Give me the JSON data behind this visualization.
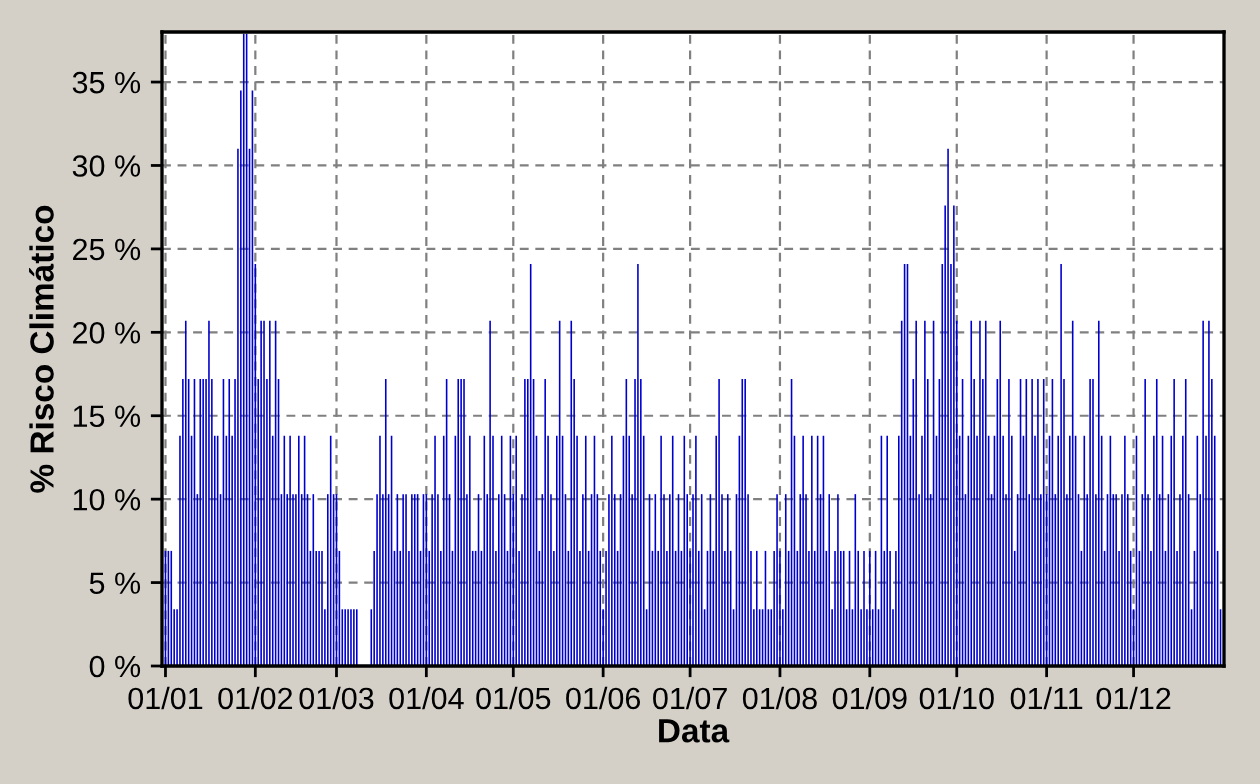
{
  "chart_data": {
    "type": "bar",
    "xlabel": "Data",
    "ylabel": "% Risco Climático",
    "color": "#0000cc",
    "grid": true,
    "ylim": [
      0,
      38
    ],
    "categories": [
      "01/01",
      null,
      null,
      null,
      null,
      null,
      null,
      null,
      null,
      null,
      null,
      null,
      null,
      null,
      null,
      null,
      null,
      null,
      null,
      null,
      null,
      null,
      null,
      null,
      null,
      null,
      null,
      null,
      null,
      null,
      null,
      "01/02",
      null,
      null,
      null,
      null,
      null,
      null,
      null,
      null,
      null,
      null,
      null,
      null,
      null,
      null,
      null,
      null,
      null,
      null,
      null,
      null,
      null,
      null,
      null,
      null,
      null,
      null,
      null,
      "01/03",
      null,
      null,
      null,
      null,
      null,
      null,
      null,
      null,
      null,
      null,
      null,
      null,
      null,
      null,
      null,
      null,
      null,
      null,
      null,
      null,
      null,
      null,
      null,
      null,
      null,
      null,
      null,
      null,
      null,
      null,
      "01/04",
      null,
      null,
      null,
      null,
      null,
      null,
      null,
      null,
      null,
      null,
      null,
      null,
      null,
      null,
      null,
      null,
      null,
      null,
      null,
      null,
      null,
      null,
      null,
      null,
      null,
      null,
      null,
      null,
      null,
      "01/05",
      null,
      null,
      null,
      null,
      null,
      null,
      null,
      null,
      null,
      null,
      null,
      null,
      null,
      null,
      null,
      null,
      null,
      null,
      null,
      null,
      null,
      null,
      null,
      null,
      null,
      null,
      null,
      null,
      null,
      null,
      "01/06",
      null,
      null,
      null,
      null,
      null,
      null,
      null,
      null,
      null,
      null,
      null,
      null,
      null,
      null,
      null,
      null,
      null,
      null,
      null,
      null,
      null,
      null,
      null,
      null,
      null,
      null,
      null,
      null,
      null,
      "01/07",
      null,
      null,
      null,
      null,
      null,
      null,
      null,
      null,
      null,
      null,
      null,
      null,
      null,
      null,
      null,
      null,
      null,
      null,
      null,
      null,
      null,
      null,
      null,
      null,
      null,
      null,
      null,
      null,
      null,
      null,
      "01/08",
      null,
      null,
      null,
      null,
      null,
      null,
      null,
      null,
      null,
      null,
      null,
      null,
      null,
      null,
      null,
      null,
      null,
      null,
      null,
      null,
      null,
      null,
      null,
      null,
      null,
      null,
      null,
      null,
      null,
      null,
      "01/09",
      null,
      null,
      null,
      null,
      null,
      null,
      null,
      null,
      null,
      null,
      null,
      null,
      null,
      null,
      null,
      null,
      null,
      null,
      null,
      null,
      null,
      null,
      null,
      null,
      null,
      null,
      null,
      null,
      null,
      "01/10",
      null,
      null,
      null,
      null,
      null,
      null,
      null,
      null,
      null,
      null,
      null,
      null,
      null,
      null,
      null,
      null,
      null,
      null,
      null,
      null,
      null,
      null,
      null,
      null,
      null,
      null,
      null,
      null,
      null,
      null,
      "01/11",
      null,
      null,
      null,
      null,
      null,
      null,
      null,
      null,
      null,
      null,
      null,
      null,
      null,
      null,
      null,
      null,
      null,
      null,
      null,
      null,
      null,
      null,
      null,
      null,
      null,
      null,
      null,
      null,
      null,
      "01/12",
      null,
      null,
      null,
      null,
      null,
      null,
      null,
      null,
      null,
      null,
      null,
      null,
      null,
      null,
      null,
      null,
      null,
      null,
      null,
      null,
      null,
      null,
      null,
      null,
      null,
      null,
      null,
      null,
      null,
      null
    ],
    "yticks": [
      {
        "value": 0,
        "label": "0 %"
      },
      {
        "value": 5,
        "label": "5 %"
      },
      {
        "value": 10,
        "label": "10 %"
      },
      {
        "value": 15,
        "label": "15 %"
      },
      {
        "value": 20,
        "label": "20 %"
      },
      {
        "value": 25,
        "label": "25 %"
      },
      {
        "value": 30,
        "label": "30 %"
      },
      {
        "value": 35,
        "label": "35 %"
      }
    ],
    "values": [
      6.9,
      6.9,
      6.9,
      3.4,
      3.4,
      13.8,
      17.2,
      20.7,
      17.2,
      13.8,
      17.2,
      10.3,
      17.2,
      17.2,
      17.2,
      20.7,
      17.2,
      13.8,
      13.8,
      10.3,
      17.2,
      13.8,
      17.2,
      13.8,
      17.2,
      31.0,
      34.5,
      37.9,
      37.9,
      31.0,
      34.5,
      24.1,
      17.2,
      20.7,
      20.7,
      17.2,
      20.7,
      13.8,
      20.7,
      17.2,
      10.3,
      13.8,
      10.3,
      13.8,
      10.3,
      10.3,
      13.8,
      10.3,
      13.8,
      10.3,
      6.9,
      10.3,
      6.9,
      6.9,
      6.9,
      3.4,
      10.3,
      13.8,
      10.3,
      10.3,
      6.9,
      3.4,
      3.4,
      3.4,
      3.4,
      3.4,
      3.4,
      0,
      0,
      0,
      0,
      3.4,
      6.9,
      10.3,
      13.8,
      10.3,
      17.2,
      10.3,
      13.8,
      6.9,
      10.3,
      6.9,
      10.3,
      10.3,
      6.9,
      10.3,
      10.3,
      10.3,
      6.9,
      10.3,
      10.3,
      6.9,
      10.3,
      13.8,
      10.3,
      6.9,
      13.8,
      17.2,
      10.3,
      6.9,
      13.8,
      17.2,
      17.2,
      17.2,
      10.3,
      13.8,
      6.9,
      6.9,
      10.3,
      6.9,
      13.8,
      10.3,
      20.7,
      13.8,
      6.9,
      10.3,
      13.8,
      10.3,
      6.9,
      13.8,
      10.3,
      13.8,
      6.9,
      10.3,
      17.2,
      17.2,
      24.1,
      17.2,
      13.8,
      6.9,
      10.3,
      17.2,
      13.8,
      10.3,
      6.9,
      13.8,
      20.7,
      13.8,
      10.3,
      6.9,
      20.7,
      17.2,
      13.8,
      6.9,
      10.3,
      13.8,
      6.9,
      10.3,
      13.8,
      10.3,
      6.9,
      3.4,
      6.9,
      10.3,
      13.8,
      10.3,
      6.9,
      10.3,
      13.8,
      17.2,
      13.8,
      10.3,
      17.2,
      24.1,
      17.2,
      13.8,
      3.4,
      10.3,
      6.9,
      10.3,
      6.9,
      13.8,
      10.3,
      6.9,
      10.3,
      13.8,
      6.9,
      10.3,
      6.9,
      13.8,
      10.3,
      6.9,
      10.3,
      13.8,
      6.9,
      10.3,
      3.4,
      6.9,
      10.3,
      6.9,
      13.8,
      17.2,
      10.3,
      6.9,
      10.3,
      6.9,
      3.4,
      10.3,
      13.8,
      17.2,
      17.2,
      10.3,
      6.9,
      3.4,
      6.9,
      3.4,
      3.4,
      6.9,
      3.4,
      3.4,
      6.9,
      10.3,
      6.9,
      3.4,
      10.3,
      6.9,
      17.2,
      13.8,
      6.9,
      10.3,
      13.8,
      10.3,
      6.9,
      13.8,
      6.9,
      13.8,
      10.3,
      13.8,
      6.9,
      10.3,
      3.4,
      6.9,
      10.3,
      6.9,
      6.9,
      3.4,
      6.9,
      3.4,
      10.3,
      6.9,
      3.4,
      6.9,
      3.4,
      6.9,
      3.4,
      6.9,
      3.4,
      13.8,
      6.9,
      13.8,
      6.9,
      3.4,
      6.9,
      13.8,
      20.7,
      24.1,
      24.1,
      13.8,
      17.2,
      20.7,
      10.3,
      13.8,
      20.7,
      17.2,
      10.3,
      20.7,
      13.8,
      17.2,
      24.1,
      27.6,
      31.0,
      24.1,
      27.6,
      20.7,
      13.8,
      17.2,
      10.3,
      13.8,
      20.7,
      17.2,
      13.8,
      20.7,
      17.2,
      20.7,
      13.8,
      10.3,
      13.8,
      17.2,
      20.7,
      13.8,
      10.3,
      17.2,
      13.8,
      6.9,
      10.3,
      17.2,
      13.8,
      17.2,
      10.3,
      17.2,
      13.8,
      17.2,
      10.3,
      17.2,
      10.3,
      13.8,
      17.2,
      10.3,
      13.8,
      24.1,
      17.2,
      10.3,
      13.8,
      20.7,
      13.8,
      10.3,
      6.9,
      13.8,
      10.3,
      17.2,
      17.2,
      10.3,
      20.7,
      13.8,
      6.9,
      10.3,
      13.8,
      10.3,
      10.3,
      6.9,
      10.3,
      13.8,
      10.3,
      6.9,
      3.4,
      13.8,
      6.9,
      10.3,
      17.2,
      10.3,
      6.9,
      13.8,
      17.2,
      10.3,
      13.8,
      6.9,
      10.3,
      13.8,
      17.2,
      6.9,
      10.3,
      13.8,
      17.2,
      10.3,
      3.4,
      6.9,
      13.8,
      10.3,
      20.7,
      13.8,
      20.7,
      17.2,
      13.8,
      6.9,
      3.4
    ]
  }
}
